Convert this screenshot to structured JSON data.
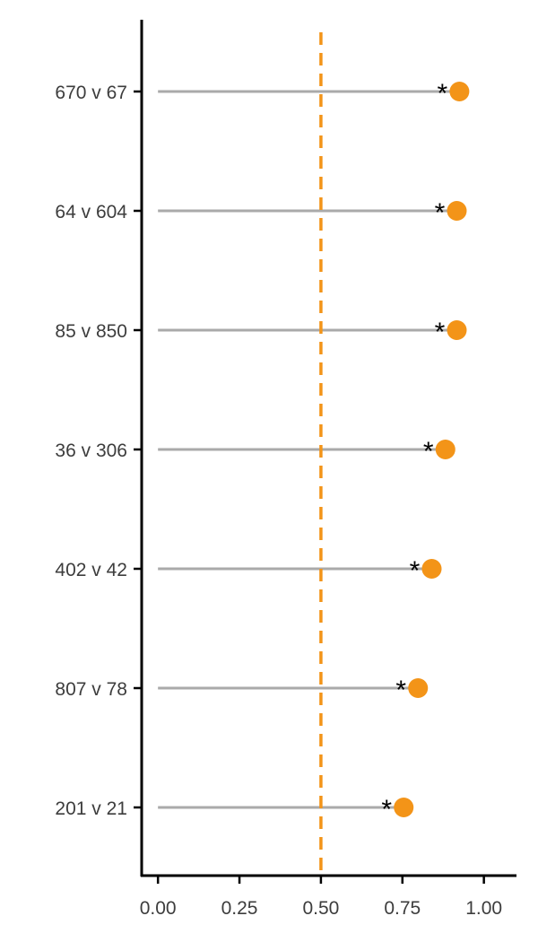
{
  "chart_data": {
    "type": "lollipop",
    "title": "",
    "xlabel": "",
    "ylabel": "",
    "categories": [
      "670 v 67",
      "64 v 604",
      "85 v 850",
      "36 v 306",
      "402 v 42",
      "807 v 78",
      "201 v 21"
    ],
    "values": [
      0.925,
      0.917,
      0.917,
      0.882,
      0.84,
      0.798,
      0.754
    ],
    "annotations": [
      "*",
      "*",
      "*",
      "*",
      "*",
      "*",
      "*"
    ],
    "reference_line": {
      "x": 0.5,
      "style": "dashed",
      "color": "#f39418"
    },
    "xlim": [
      -0.05,
      1.1
    ],
    "x_ticks": [
      0,
      0.25,
      0.5,
      0.75,
      1
    ],
    "x_tick_labels": [
      "0.00",
      "0.25",
      "0.50",
      "0.75",
      "1.00"
    ],
    "stem_start": 0,
    "grid": false,
    "legend": "none",
    "colors": {
      "point": "#f39418",
      "stem": "#aaaaaa",
      "axis": "#000000"
    }
  }
}
